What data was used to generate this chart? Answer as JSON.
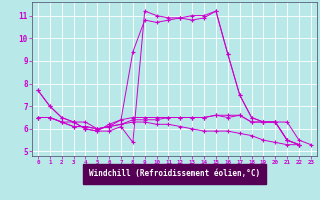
{
  "xlabel": "Windchill (Refroidissement éolien,°C)",
  "bg_color": "#b8e8e8",
  "plot_bg_color": "#b8e8e8",
  "xlabel_bg": "#660066",
  "line_color": "#cc00cc",
  "grid_color": "#ffffff",
  "ylim": [
    4.8,
    11.6
  ],
  "xlim": [
    -0.5,
    23.5
  ],
  "yticks": [
    5,
    6,
    7,
    8,
    9,
    10,
    11
  ],
  "xticks": [
    0,
    1,
    2,
    3,
    4,
    5,
    6,
    7,
    8,
    9,
    10,
    11,
    12,
    13,
    14,
    15,
    16,
    17,
    18,
    19,
    20,
    21,
    22,
    23
  ],
  "xtick_labels": [
    "0",
    "1",
    "2",
    "3",
    "4",
    "5",
    "6",
    "7",
    "8",
    "9",
    "10",
    "11",
    "12",
    "13",
    "14",
    "15",
    "16",
    "17",
    "18",
    "19",
    "20",
    "21",
    "22",
    "23"
  ],
  "series": [
    {
      "x": [
        0,
        1,
        2,
        3,
        4,
        5,
        6,
        7,
        8,
        9,
        10,
        11,
        12,
        13,
        14,
        15,
        16,
        17,
        18,
        19,
        20,
        21,
        22
      ],
      "y": [
        7.7,
        7.0,
        6.5,
        6.3,
        6.0,
        5.9,
        5.9,
        6.1,
        5.4,
        11.2,
        11.0,
        10.9,
        10.9,
        11.0,
        11.0,
        11.2,
        9.3,
        7.5,
        6.5,
        6.3,
        6.3,
        5.5,
        5.3
      ]
    },
    {
      "x": [
        0,
        1,
        2,
        3,
        4,
        5,
        6,
        7,
        8,
        9,
        10,
        11,
        12,
        13,
        14,
        15,
        16,
        17,
        18,
        19,
        20,
        21,
        22
      ],
      "y": [
        7.7,
        7.0,
        6.5,
        6.3,
        6.0,
        5.9,
        6.2,
        6.4,
        9.4,
        10.8,
        10.7,
        10.8,
        10.9,
        10.8,
        10.9,
        11.2,
        9.3,
        7.5,
        6.5,
        6.3,
        6.3,
        5.5,
        5.3
      ]
    },
    {
      "x": [
        0,
        1,
        2,
        3,
        4,
        5,
        6,
        7,
        8,
        9,
        10,
        11,
        12,
        13,
        14,
        15,
        16,
        17,
        18,
        19,
        20,
        21,
        22,
        23
      ],
      "y": [
        6.5,
        6.5,
        6.3,
        6.3,
        6.3,
        6.0,
        6.1,
        6.4,
        6.5,
        6.5,
        6.5,
        6.5,
        6.5,
        6.5,
        6.5,
        6.6,
        6.6,
        6.6,
        6.3,
        6.3,
        6.3,
        6.3,
        5.5,
        5.3
      ]
    },
    {
      "x": [
        0,
        1,
        2,
        3,
        4,
        5,
        6,
        7,
        8,
        9,
        10,
        11,
        12,
        13,
        14,
        15,
        16,
        17,
        18,
        19,
        20,
        21,
        22
      ],
      "y": [
        6.5,
        6.5,
        6.3,
        6.1,
        6.1,
        6.0,
        6.1,
        6.2,
        6.4,
        6.4,
        6.4,
        6.5,
        6.5,
        6.5,
        6.5,
        6.6,
        6.5,
        6.6,
        6.3,
        6.3,
        6.3,
        5.5,
        5.3
      ]
    },
    {
      "x": [
        0,
        1,
        2,
        3,
        4,
        5,
        6,
        7,
        8,
        9,
        10,
        11,
        12,
        13,
        14,
        15,
        16,
        17,
        18,
        19,
        20,
        21,
        22
      ],
      "y": [
        6.5,
        6.5,
        6.3,
        6.1,
        6.1,
        6.0,
        6.1,
        6.2,
        6.3,
        6.3,
        6.2,
        6.2,
        6.1,
        6.0,
        5.9,
        5.9,
        5.9,
        5.8,
        5.7,
        5.5,
        5.4,
        5.3,
        5.3
      ]
    }
  ]
}
